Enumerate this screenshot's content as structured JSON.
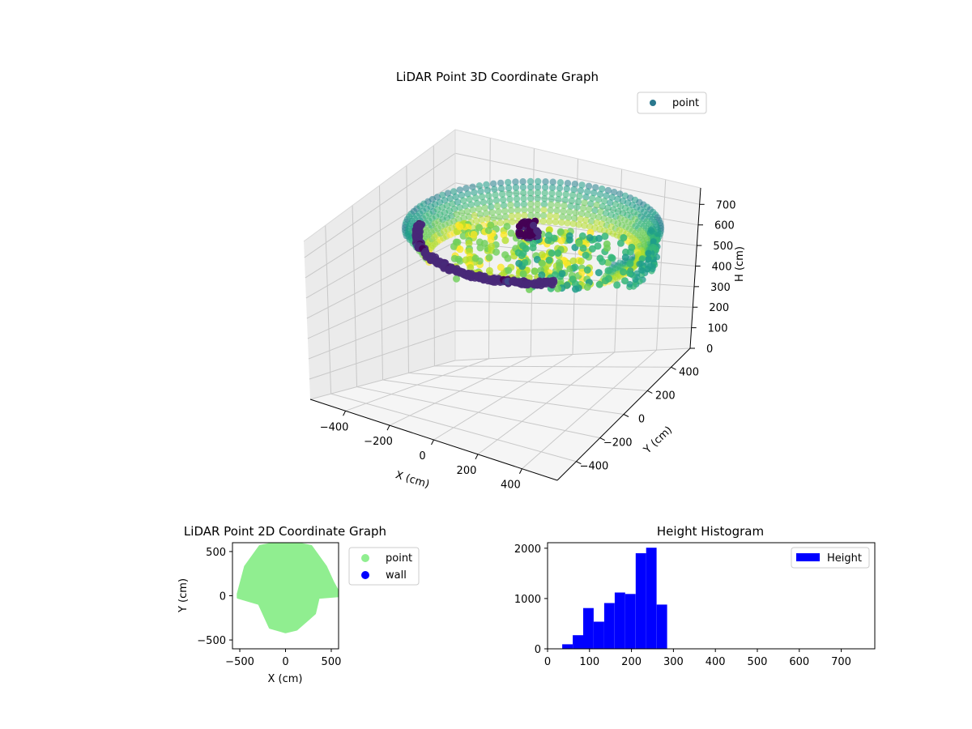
{
  "figure_title": "",
  "chart_data": [
    {
      "type": "scatter",
      "subtype": "3d",
      "title": "LiDAR Point 3D Coordinate Graph",
      "xlabel": "X (cm)",
      "ylabel": "Y (cm)",
      "zlabel": "H (cm)",
      "x_ticks": [
        "−400",
        "−200",
        "0",
        "200",
        "400"
      ],
      "y_ticks": [
        "−400",
        "−200",
        "0",
        "200",
        "400"
      ],
      "z_ticks": [
        "0",
        "100",
        "200",
        "300",
        "400",
        "500",
        "600",
        "700"
      ],
      "xlim": [
        -560,
        560
      ],
      "ylim": [
        -560,
        560
      ],
      "zlim": [
        780,
        0
      ],
      "z_inverted": true,
      "colormap": "viridis",
      "legend": {
        "placement": "top-right",
        "entries": [
          {
            "name": "point",
            "color": "#2a788e"
          }
        ]
      },
      "series": [
        {
          "name": "point",
          "description_of_shape": "cylindrical wall ring and inner floor/seating arc",
          "samples": [
            {
              "x": -100,
              "y": 300,
              "h": 100
            },
            {
              "x": 300,
              "y": 250,
              "h": 100
            },
            {
              "x": 480,
              "y": 0,
              "h": 250
            },
            {
              "x": -460,
              "y": 100,
              "h": 120
            },
            {
              "x": 0,
              "y": -60,
              "h": 200
            },
            {
              "x": 150,
              "y": -50,
              "h": 420
            },
            {
              "x": -300,
              "y": -150,
              "h": 250
            }
          ]
        }
      ],
      "grid": true
    },
    {
      "type": "scatter",
      "title": "LiDAR Point 2D Coordinate Graph",
      "xlabel": "X (cm)",
      "ylabel": "Y (cm)",
      "x_ticks": [
        "−500",
        "0",
        "500"
      ],
      "y_ticks": [
        "500",
        "0",
        "−500"
      ],
      "xlim": [
        -580,
        580
      ],
      "ylim": [
        -600,
        600
      ],
      "legend": {
        "placement": "right-outside",
        "entries": [
          {
            "name": "point",
            "color": "#90ee90"
          },
          {
            "name": "wall",
            "color": "#0000ff"
          }
        ]
      },
      "series": [
        {
          "name": "point",
          "color": "#90ee90",
          "outline": [
            {
              "x": -520,
              "y": 20
            },
            {
              "x": -440,
              "y": 330
            },
            {
              "x": -280,
              "y": 560
            },
            {
              "x": 0,
              "y": 620
            },
            {
              "x": 280,
              "y": 560
            },
            {
              "x": 440,
              "y": 330
            },
            {
              "x": 520,
              "y": 150
            },
            {
              "x": 600,
              "y": 0
            },
            {
              "x": 360,
              "y": -20
            },
            {
              "x": 320,
              "y": -200
            },
            {
              "x": 120,
              "y": -380
            },
            {
              "x": 0,
              "y": -410
            },
            {
              "x": -170,
              "y": -360
            },
            {
              "x": -290,
              "y": -90
            },
            {
              "x": -520,
              "y": -20
            }
          ]
        },
        {
          "name": "wall",
          "color": "#0000ff",
          "points": []
        }
      ]
    },
    {
      "type": "bar",
      "subtype": "histogram",
      "title": "Height Histogram",
      "xlabel": "",
      "ylabel": "",
      "x_ticks": [
        "0",
        "100",
        "200",
        "300",
        "400",
        "500",
        "600",
        "700"
      ],
      "y_ticks": [
        "0",
        "1000",
        "2000"
      ],
      "xlim": [
        0,
        780
      ],
      "ylim": [
        0,
        2110
      ],
      "color": "#0000ff",
      "legend": {
        "placement": "top-right",
        "entries": [
          {
            "name": "Height",
            "color": "#0000ff"
          }
        ]
      },
      "bins": [
        35,
        60,
        85,
        110,
        135,
        160,
        185,
        210,
        235,
        260,
        285
      ],
      "counts": [
        90,
        270,
        810,
        540,
        910,
        1120,
        1090,
        1900,
        2010,
        880
      ]
    }
  ]
}
